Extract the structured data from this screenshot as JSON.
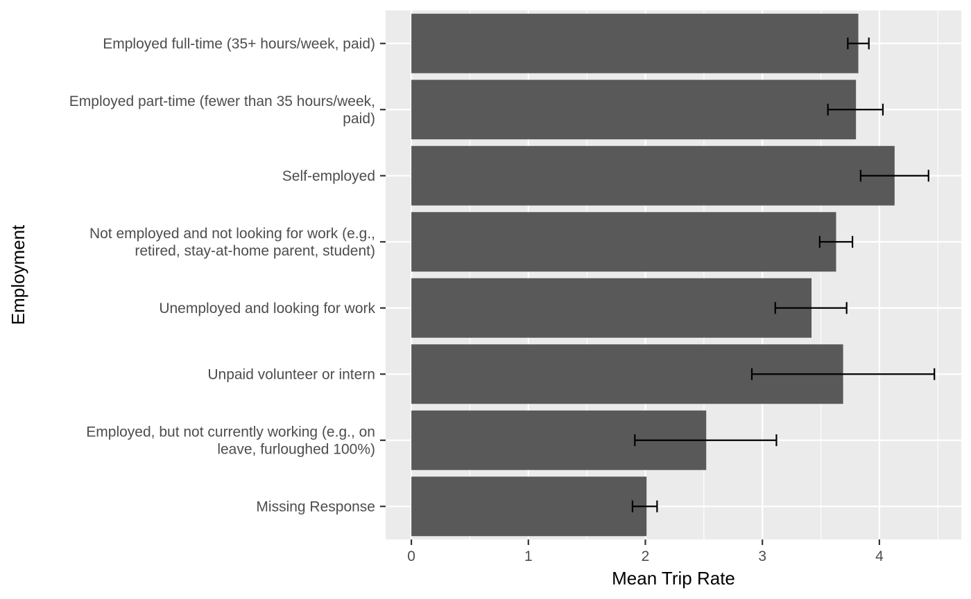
{
  "chart_data": {
    "type": "bar",
    "orientation": "horizontal",
    "xlabel": "Mean Trip Rate",
    "ylabel": "Employment",
    "xlim": [
      -0.22,
      4.7
    ],
    "x_ticks": [
      "0",
      "1",
      "2",
      "3",
      "4"
    ],
    "grid": true,
    "categories": [
      {
        "label": [
          "Employed full-time (35+ hours/week, paid)"
        ]
      },
      {
        "label": [
          "Employed part-time (fewer than 35 hours/week,",
          "paid)"
        ]
      },
      {
        "label": [
          "Self-employed"
        ]
      },
      {
        "label": [
          "Not employed and not looking for work (e.g.,",
          "retired, stay-at-home parent, student)"
        ]
      },
      {
        "label": [
          "Unemployed and looking for work"
        ]
      },
      {
        "label": [
          "Unpaid volunteer or intern"
        ]
      },
      {
        "label": [
          "Employed, but not currently working (e.g., on",
          "leave, furloughed 100%)"
        ]
      },
      {
        "label": [
          "Missing Response"
        ]
      }
    ],
    "values": [
      3.82,
      3.8,
      4.13,
      3.63,
      3.42,
      3.69,
      2.52,
      2.01
    ],
    "error_low": [
      3.73,
      3.56,
      3.84,
      3.49,
      3.11,
      2.91,
      1.91,
      1.89
    ],
    "error_high": [
      3.91,
      4.03,
      4.42,
      3.77,
      3.72,
      4.47,
      3.12,
      2.1
    ],
    "colors": {
      "bar": "#595959",
      "panel": "#ebebeb",
      "grid": "#ffffff",
      "errorbar": "#000000",
      "tick": "#333333"
    }
  }
}
